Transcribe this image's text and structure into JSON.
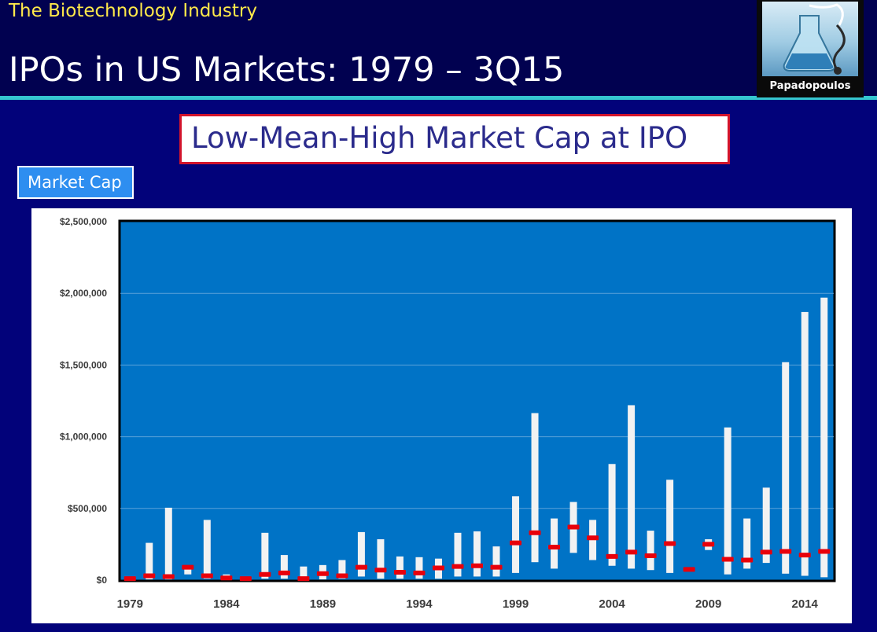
{
  "header": {
    "section_label": "The Biotechnology Industry",
    "title": "IPOs in US Markets: 1979 – 3Q15",
    "logo_caption": "Papadopoulos"
  },
  "subtitle": "Low-Mean-High Market Cap at IPO",
  "measure_label": "Market Cap",
  "colors": {
    "background": "#02027a",
    "header_background": "#010150",
    "accent_line": "#35c6cf",
    "section_label": "#ffe94a",
    "plot_area": "#0073c6",
    "range_bar": "#f2f2f2",
    "mean_marker": "#e8000b",
    "subtitle_border": "#d3142b",
    "badge": "#2e8ef0"
  },
  "chart_data": {
    "type": "bar",
    "title": "",
    "xlabel": "",
    "ylabel": "",
    "ylim": [
      0,
      2500000
    ],
    "y_ticks": [
      "$0",
      "$500,000",
      "$1,000,000",
      "$1,500,000",
      "$2,000,000",
      "$2,500,000"
    ],
    "y_tick_values": [
      0,
      500000,
      1000000,
      1500000,
      2000000,
      2500000
    ],
    "x_tick_labels": [
      "1979",
      "1984",
      "1989",
      "1994",
      "1999",
      "2004",
      "2009",
      "2014"
    ],
    "grid": true,
    "legend": "none",
    "categories": [
      1979,
      1980,
      1981,
      1982,
      1983,
      1984,
      1985,
      1986,
      1987,
      1988,
      1989,
      1990,
      1991,
      1992,
      1993,
      1994,
      1995,
      1996,
      1997,
      1998,
      1999,
      2000,
      2001,
      2002,
      2003,
      2004,
      2005,
      2006,
      2007,
      2008,
      2009,
      2010,
      2011,
      2012,
      2013,
      2014,
      2015
    ],
    "series": [
      {
        "name": "Low",
        "values": [
          5000,
          5000,
          5000,
          40000,
          10000,
          5000,
          5000,
          10000,
          10000,
          5000,
          5000,
          10000,
          25000,
          10000,
          10000,
          10000,
          10000,
          25000,
          25000,
          25000,
          50000,
          125000,
          80000,
          190000,
          140000,
          100000,
          80000,
          70000,
          50000,
          80000,
          210000,
          40000,
          80000,
          120000,
          45000,
          30000,
          20000
        ]
      },
      {
        "name": "Mean",
        "values": [
          10000,
          30000,
          25000,
          90000,
          30000,
          15000,
          10000,
          40000,
          50000,
          10000,
          45000,
          30000,
          90000,
          70000,
          55000,
          50000,
          85000,
          95000,
          100000,
          90000,
          260000,
          330000,
          230000,
          370000,
          295000,
          165000,
          195000,
          170000,
          255000,
          75000,
          250000,
          145000,
          140000,
          195000,
          200000,
          175000,
          200000
        ]
      },
      {
        "name": "High",
        "values": [
          20000,
          260000,
          505000,
          95000,
          420000,
          40000,
          15000,
          330000,
          175000,
          95000,
          105000,
          140000,
          335000,
          285000,
          165000,
          160000,
          150000,
          330000,
          340000,
          235000,
          585000,
          1165000,
          430000,
          545000,
          420000,
          810000,
          1220000,
          345000,
          700000,
          75000,
          285000,
          1065000,
          430000,
          645000,
          1520000,
          1870000,
          1970000
        ]
      }
    ]
  }
}
